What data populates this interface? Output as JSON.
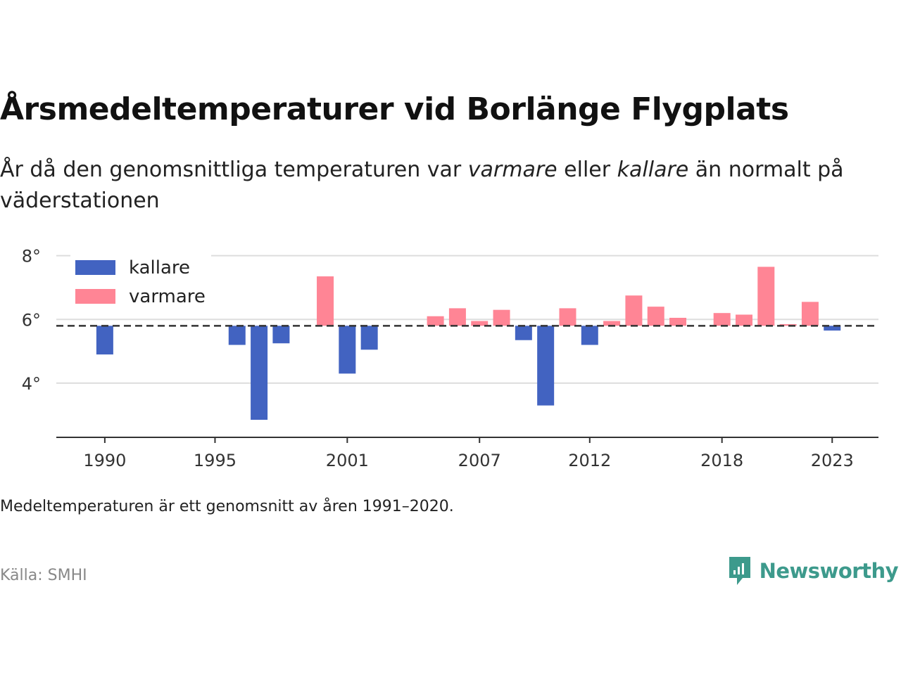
{
  "header": {
    "title": "Årsmedeltemperaturer vid Borlänge Flygplats",
    "subtitle_part1": "År då den genomsnittliga temperaturen var ",
    "subtitle_em1": "varmare",
    "subtitle_part2": " eller ",
    "subtitle_em2": "kallare",
    "subtitle_part3": " än normalt på väderstationen"
  },
  "footer": {
    "note": "Medeltemperaturen är ett genomsnitt av åren 1991–2020.",
    "source": "Källa: SMHI",
    "brand": "Newsworthy"
  },
  "colors": {
    "kallare": "#4263c1",
    "varmare": "#ff8595",
    "baseline": "#333333",
    "brand": "#3d9a8c"
  },
  "chart_data": {
    "type": "bar",
    "baseline": 5.8,
    "baseline_style": "dashed",
    "ylim": [
      2.3,
      8.3
    ],
    "yticks": [
      4,
      6,
      8
    ],
    "ytick_labels": [
      "4°",
      "6°",
      "8°"
    ],
    "xlim": [
      1987.8,
      2025.1
    ],
    "xticks": [
      1990,
      1995,
      2001,
      2007,
      2012,
      2018,
      2023
    ],
    "xtick_labels": [
      "1990",
      "1995",
      "2001",
      "2007",
      "2012",
      "2018",
      "2023"
    ],
    "grid": "horizontal",
    "legend_position": "top-left",
    "series": [
      {
        "name": "kallare",
        "color": "#4263c1",
        "points": [
          {
            "x": 1990,
            "y": 4.9
          },
          {
            "x": 1996,
            "y": 5.2
          },
          {
            "x": 1997,
            "y": 2.85
          },
          {
            "x": 1998,
            "y": 5.25
          },
          {
            "x": 2001,
            "y": 4.3
          },
          {
            "x": 2002,
            "y": 5.05
          },
          {
            "x": 2009,
            "y": 5.35
          },
          {
            "x": 2010,
            "y": 3.3
          },
          {
            "x": 2012,
            "y": 5.2
          },
          {
            "x": 2023,
            "y": 5.65
          }
        ]
      },
      {
        "name": "varmare",
        "color": "#ff8595",
        "points": [
          {
            "x": 2000,
            "y": 7.35
          },
          {
            "x": 2005,
            "y": 6.1
          },
          {
            "x": 2006,
            "y": 6.35
          },
          {
            "x": 2007,
            "y": 5.95
          },
          {
            "x": 2008,
            "y": 6.3
          },
          {
            "x": 2011,
            "y": 6.35
          },
          {
            "x": 2013,
            "y": 5.95
          },
          {
            "x": 2014,
            "y": 6.75
          },
          {
            "x": 2015,
            "y": 6.4
          },
          {
            "x": 2016,
            "y": 6.05
          },
          {
            "x": 2018,
            "y": 6.2
          },
          {
            "x": 2019,
            "y": 6.15
          },
          {
            "x": 2020,
            "y": 7.65
          },
          {
            "x": 2021,
            "y": 5.85
          },
          {
            "x": 2022,
            "y": 6.55
          }
        ]
      }
    ]
  }
}
